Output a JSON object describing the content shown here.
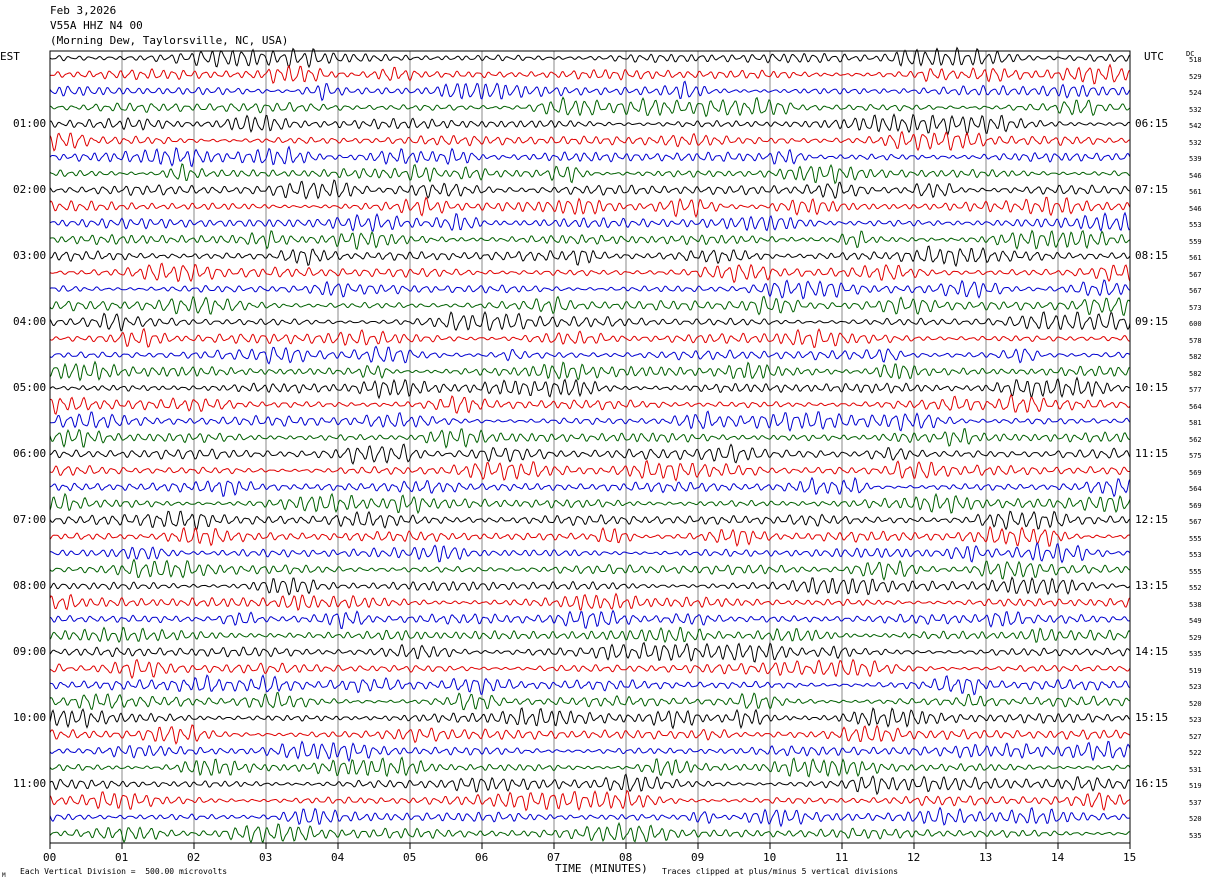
{
  "header": {
    "date": "Feb 3,2026",
    "station": "V55A HHZ N4 00",
    "location": "(Morning Dew, Taylorsville, NC, USA)"
  },
  "chart_data": {
    "type": "line",
    "subtype": "helicorder",
    "left_axis_label": "EST",
    "right_axis_label": "UTC",
    "dc_label": "DC",
    "xlabel": "TIME (MINUTES)",
    "xlim": [
      0,
      15
    ],
    "x_ticks": [
      "00",
      "01",
      "02",
      "03",
      "04",
      "05",
      "06",
      "07",
      "08",
      "09",
      "10",
      "11",
      "12",
      "13",
      "14",
      "15"
    ],
    "grid": "vertical lines every minute",
    "trace_minutes_per_line": 15,
    "trace_colors": [
      "#000000",
      "#e00000",
      "#0000d0",
      "#006000"
    ],
    "left_time_labels": [
      {
        "line": 4,
        "label": "01:00"
      },
      {
        "line": 8,
        "label": "02:00"
      },
      {
        "line": 12,
        "label": "03:00"
      },
      {
        "line": 16,
        "label": "04:00"
      },
      {
        "line": 20,
        "label": "05:00"
      },
      {
        "line": 24,
        "label": "06:00"
      },
      {
        "line": 28,
        "label": "07:00"
      },
      {
        "line": 32,
        "label": "08:00"
      },
      {
        "line": 36,
        "label": "09:00"
      },
      {
        "line": 40,
        "label": "10:00"
      },
      {
        "line": 44,
        "label": "11:00"
      }
    ],
    "right_time_labels": [
      {
        "line": 4,
        "label": "06:15"
      },
      {
        "line": 8,
        "label": "07:15"
      },
      {
        "line": 12,
        "label": "08:15"
      },
      {
        "line": 16,
        "label": "09:15"
      },
      {
        "line": 20,
        "label": "10:15"
      },
      {
        "line": 24,
        "label": "11:15"
      },
      {
        "line": 28,
        "label": "12:15"
      },
      {
        "line": 32,
        "label": "13:15"
      },
      {
        "line": 36,
        "label": "14:15"
      },
      {
        "line": 40,
        "label": "15:15"
      },
      {
        "line": 44,
        "label": "16:15"
      }
    ],
    "dc_offsets": [
      "518",
      "529",
      "524",
      "532",
      "542",
      "532",
      "539",
      "546",
      "561",
      "546",
      "553",
      "559",
      "561",
      "567",
      "567",
      "573",
      "600",
      "578",
      "582",
      "582",
      "577",
      "564",
      "581",
      "562",
      "575",
      "569",
      "564",
      "569",
      "567",
      "555",
      "553",
      "555",
      "552",
      "538",
      "549",
      "529",
      "535",
      "519",
      "523",
      "520",
      "523",
      "527",
      "522",
      "531",
      "519",
      "537",
      "520",
      "535"
    ]
  },
  "footer": {
    "vertical_division": "Each Vertical Division =  500.00 microvolts",
    "clip_note": "Traces clipped at plus/minus 5 vertical divisions",
    "corner_mark": "M"
  }
}
